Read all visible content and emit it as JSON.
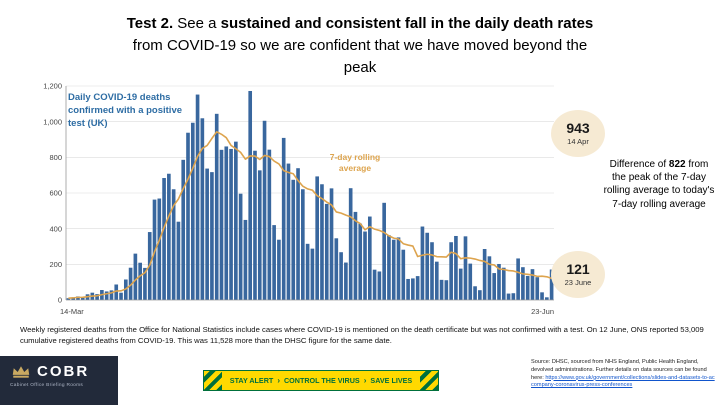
{
  "slide": {
    "title_segments": [
      {
        "text": "Test 2. ",
        "bold": true
      },
      {
        "text": "See a ",
        "bold": false
      },
      {
        "text": "sustained and consistent fall in the daily death rates",
        "bold": true
      },
      {
        "text": " from COVID-19 so we are confident that we have moved beyond the peak",
        "bold": false
      }
    ],
    "note": "Weekly registered deaths from the Office for National Statistics include cases where COVID-19 is mentioned on the death certificate but was not confirmed with a test. On 12 June, ONS reported 53,009 cumulative registered deaths from COVID-19. This was 11,528 more than the DHSC figure for the same date.",
    "logo": {
      "name": "COBR",
      "subtitle": "Cabinet Office Briefing Rooms"
    },
    "banner": {
      "items": [
        "STAY ALERT",
        "CONTROL THE VIRUS",
        "SAVE LIVES"
      ],
      "separator": "›",
      "yellow": "#ffd900",
      "green": "#00703c"
    },
    "source": {
      "text": "Source: DHSC, sourced from NHS England, Public Health England, devolved administrations. Further details on data sources can be found here: ",
      "link": "https://www.gov.uk/government/collections/slides-and-datasets-to-accompany-coronavirus-press-conferences"
    }
  },
  "annotations": {
    "peak": {
      "value": "943",
      "date": "14 Apr"
    },
    "today": {
      "value": "121",
      "date": "23 June"
    }
  },
  "difference": {
    "prefix": "Difference of",
    "value": "822",
    "suffix": "from the peak of the 7-day rolling average to today's 7-day rolling average"
  },
  "chart_data": {
    "type": "bar",
    "title": "Daily COVID-19 deaths confirmed with a positive test (UK)",
    "series_label": "7-day rolling average",
    "x_start_label": "14-Mar",
    "x_end_label": "23-Jun",
    "ylim": [
      0,
      1200
    ],
    "yticks": [
      0,
      200,
      400,
      600,
      800,
      1000,
      1200
    ],
    "grid": true,
    "bar_color": "#39679e",
    "line_color": "#dda44e",
    "values": [
      10,
      14,
      20,
      16,
      32,
      41,
      33,
      56,
      48,
      54,
      87,
      41,
      115,
      181,
      260,
      209,
      180,
      381,
      563,
      569,
      684,
      708,
      621,
      439,
      786,
      938,
      994,
      1152,
      1019,
      737,
      717,
      1044,
      842,
      861,
      847,
      888,
      596,
      449,
      1172,
      837,
      727,
      1005,
      843,
      420,
      338,
      909,
      765,
      674,
      739,
      621,
      315,
      288,
      693,
      649,
      539,
      626,
      346,
      268,
      210,
      627,
      494,
      428,
      384,
      468,
      170,
      160,
      545,
      363,
      338,
      351,
      282,
      118,
      121,
      134,
      412,
      377,
      324,
      215,
      113,
      111,
      324,
      359,
      176,
      357,
      204,
      77,
      55,
      286,
      245,
      151,
      202,
      181,
      36,
      38,
      233,
      184,
      135,
      173,
      128,
      43,
      15,
      171
    ],
    "rolling_window": 7,
    "rolling_peak": {
      "value": 943,
      "date": "14 Apr"
    },
    "rolling_latest": {
      "value": 121,
      "date": "23 June"
    }
  }
}
